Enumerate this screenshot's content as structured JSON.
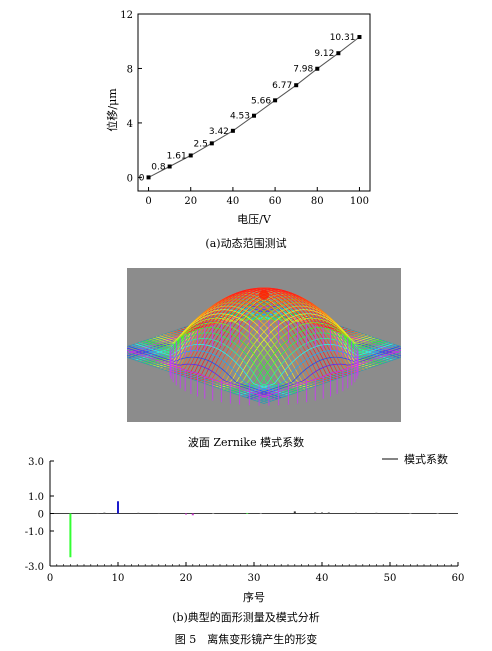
{
  "chart_data": [
    {
      "type": "line",
      "x": [
        0,
        10,
        20,
        30,
        40,
        50,
        60,
        70,
        80,
        90,
        100
      ],
      "y": [
        0,
        0.8,
        1.61,
        2.5,
        3.42,
        4.53,
        5.66,
        6.77,
        7.98,
        9.12,
        10.31
      ],
      "point_labels": [
        "0",
        "0.8",
        "1.61",
        "2.5",
        "3.42",
        "4.53",
        "5.66",
        "6.77",
        "7.98",
        "9.12",
        "10.31"
      ],
      "xlabel": "电压/V",
      "ylabel": "位移/μm",
      "xlim": [
        -5,
        105
      ],
      "ylim": [
        -1,
        12
      ],
      "xticks": [
        "0",
        "20",
        "40",
        "60",
        "80",
        "100"
      ],
      "yticks": [
        "0",
        "4",
        "8",
        "12"
      ],
      "caption": "(a)动态范围测试"
    },
    {
      "type": "bar",
      "title": "波面 Zernike 模式系数",
      "legend": "模式系数",
      "legend_position": "top-right",
      "xlabel": "序号",
      "xlim": [
        0,
        60
      ],
      "ylim": [
        -3.0,
        3.0
      ],
      "xticks": [
        "0",
        "10",
        "20",
        "30",
        "40",
        "50",
        "60"
      ],
      "yticks": [
        "3.0",
        "1.0",
        "0",
        "-1.0",
        "-3.0"
      ],
      "bars": [
        {
          "x": 3,
          "value": -2.5,
          "color": "#33ff33"
        },
        {
          "x": 7,
          "value": 0.03,
          "color": "#555555"
        },
        {
          "x": 8,
          "value": 0.05,
          "color": "#555555"
        },
        {
          "x": 10,
          "value": 0.7,
          "color": "#1a1acc"
        },
        {
          "x": 13,
          "value": 0.04,
          "color": "#555555"
        },
        {
          "x": 16,
          "value": 0.03,
          "color": "#555555"
        },
        {
          "x": 20,
          "value": -0.05,
          "color": "#cc33cc"
        },
        {
          "x": 21,
          "value": -0.1,
          "color": "#cc33cc"
        },
        {
          "x": 24,
          "value": 0.03,
          "color": "#888888"
        },
        {
          "x": 29,
          "value": 0.03,
          "color": "#44cc44"
        },
        {
          "x": 31,
          "value": 0.03,
          "color": "#888888"
        },
        {
          "x": 36,
          "value": 0.12,
          "color": "#333333"
        },
        {
          "x": 39,
          "value": 0.06,
          "color": "#555555"
        },
        {
          "x": 40,
          "value": 0.06,
          "color": "#555555"
        },
        {
          "x": 41,
          "value": 0.06,
          "color": "#555555"
        },
        {
          "x": 45,
          "value": 0.04,
          "color": "#555555"
        },
        {
          "x": 48,
          "value": 0.04,
          "color": "#555555"
        },
        {
          "x": 53,
          "value": 0.03,
          "color": "#888888"
        },
        {
          "x": 57,
          "value": 0.03,
          "color": "#888888"
        }
      ],
      "caption": "(b)典型的面形测量及模式分析"
    }
  ],
  "figure_caption": "图 5　离焦变形镜产生的形变",
  "colors": {
    "surface_background": "#8c8c8c",
    "surface_flat": "#2a9bb0",
    "surface_peak": "#ff2200",
    "surface_base": "#cc33ff"
  }
}
